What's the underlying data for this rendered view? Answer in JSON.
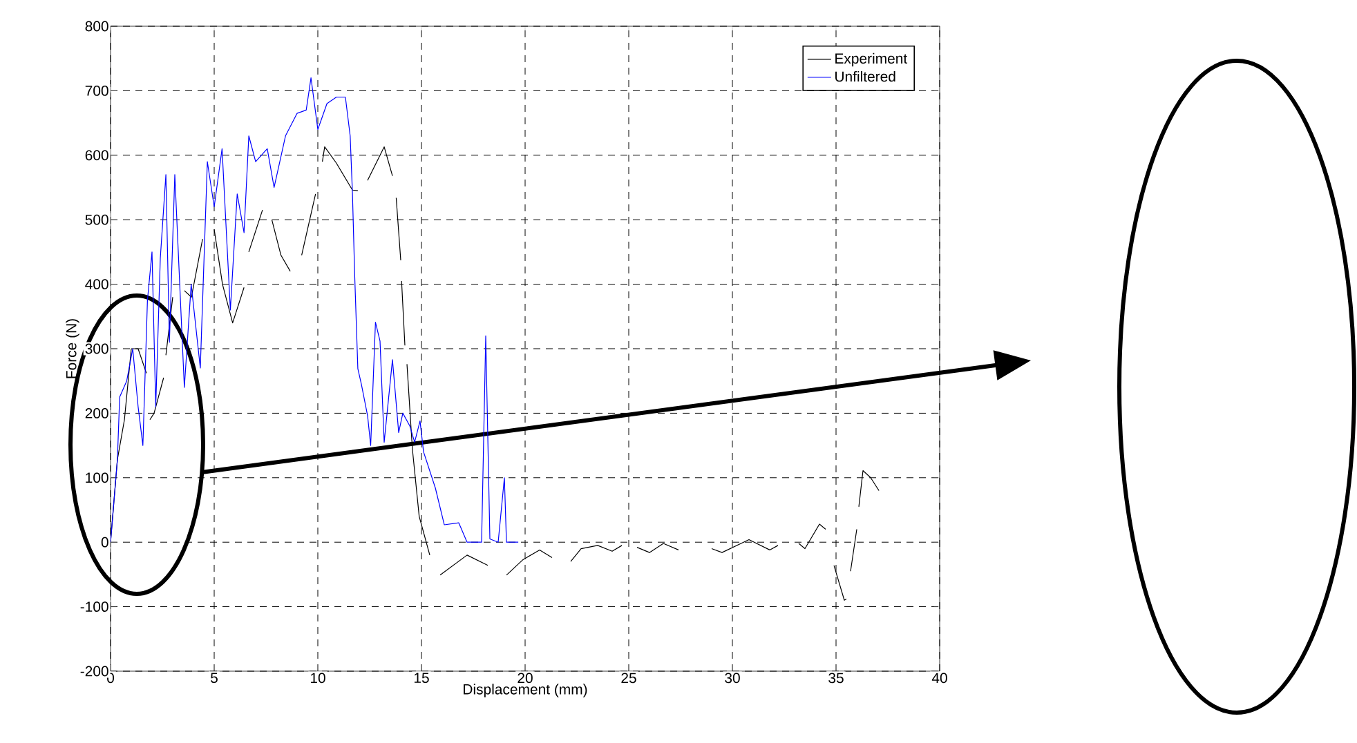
{
  "chart_data": {
    "type": "line",
    "xlabel": "Displacement (mm)",
    "ylabel": "Force (N)",
    "xlim": [
      0,
      40
    ],
    "ylim": [
      -200,
      800
    ],
    "xticks": [
      0,
      5,
      10,
      15,
      20,
      25,
      30,
      35,
      40
    ],
    "yticks": [
      -200,
      -100,
      0,
      100,
      200,
      300,
      400,
      500,
      600,
      700,
      800
    ],
    "grid": true,
    "legend": "top right",
    "line_style": "solid",
    "marker": "none",
    "series": [
      {
        "name": "Experiment",
        "color": "#000000",
        "x": [
          0,
          0.33,
          0.67,
          1.0,
          1.33,
          1.73,
          null,
          1.9,
          2.1,
          2.56,
          null,
          2.67,
          3.0,
          null,
          3.56,
          3.9,
          4.44,
          null,
          5.0,
          5.4,
          5.89,
          6.44,
          null,
          6.67,
          7.33,
          null,
          7.78,
          8.22,
          8.67,
          null,
          9.22,
          9.89,
          null,
          10.22,
          10.33,
          10.89,
          11.67,
          11.93,
          null,
          12.4,
          13.2,
          13.6,
          null,
          13.78,
          14.0,
          null,
          14.04,
          14.2,
          null,
          14.3,
          14.56,
          14.89,
          15.4,
          null,
          15.9,
          17.2,
          18.2,
          null,
          19.1,
          19.9,
          20.7,
          21.3,
          null,
          22.2,
          22.7,
          23.5,
          24.2,
          24.67,
          null,
          25.4,
          26.0,
          26.67,
          27.4,
          null,
          29.0,
          29.5,
          30.8,
          31.8,
          32.2,
          null,
          33.2,
          33.5,
          34.2,
          34.5,
          null,
          34.9,
          35.4,
          35.5,
          null,
          35.7,
          36.0,
          null,
          36.1,
          36.3,
          36.67,
          37.07
        ],
        "values": [
          0,
          128,
          190,
          300,
          300,
          262,
          null,
          190,
          200,
          255,
          null,
          290,
          380,
          null,
          390,
          380,
          470,
          null,
          485,
          400,
          340,
          395,
          null,
          450,
          515,
          null,
          500,
          445,
          420,
          null,
          445,
          540,
          null,
          590,
          613,
          588,
          546,
          545,
          null,
          561,
          613,
          568,
          null,
          534,
          437,
          null,
          405,
          305,
          null,
          276,
          145,
          40,
          -20,
          null,
          -51,
          -20,
          -36,
          null,
          -51,
          -27,
          -12,
          -24,
          null,
          -30,
          -10,
          -5,
          -14,
          -5,
          null,
          -8,
          -16,
          -2,
          -12,
          null,
          -10,
          -16,
          4,
          -12,
          -5,
          null,
          -2,
          -10,
          28,
          20,
          null,
          -36,
          -90,
          -88,
          null,
          -45,
          20,
          null,
          55,
          111,
          100,
          80
        ]
      },
      {
        "name": "Unfiltered",
        "color": "#0000ff",
        "x": [
          0,
          0.33,
          0.44,
          0.78,
          1.07,
          1.33,
          1.56,
          1.78,
          2.0,
          2.18,
          2.4,
          2.67,
          2.84,
          3.1,
          3.56,
          3.89,
          4.33,
          4.67,
          5.0,
          5.38,
          5.78,
          6.11,
          6.44,
          6.67,
          7.0,
          7.56,
          7.89,
          8.44,
          9.0,
          9.44,
          9.67,
          10.0,
          10.44,
          10.89,
          11.33,
          11.56,
          11.67,
          11.78,
          11.93,
          12.1,
          12.4,
          12.55,
          12.78,
          13.0,
          13.2,
          13.6,
          13.9,
          14.1,
          14.44,
          14.67,
          14.93,
          15.1,
          15.67,
          16.1,
          16.8,
          17.2,
          17.9,
          18.1,
          18.3,
          18.7,
          19.0,
          19.1,
          19.67
        ],
        "values": [
          0,
          128,
          225,
          250,
          300,
          210,
          150,
          375,
          450,
          210,
          440,
          570,
          310,
          570,
          240,
          400,
          270,
          590,
          520,
          610,
          360,
          540,
          480,
          630,
          590,
          610,
          550,
          630,
          665,
          670,
          720,
          640,
          680,
          690,
          690,
          630,
          541,
          412,
          269,
          245,
          196,
          150,
          341,
          312,
          155,
          283,
          170,
          200,
          180,
          155,
          188,
          140,
          84,
          27,
          30,
          0,
          0,
          320,
          5,
          0,
          100,
          0,
          0
        ]
      }
    ]
  }
}
